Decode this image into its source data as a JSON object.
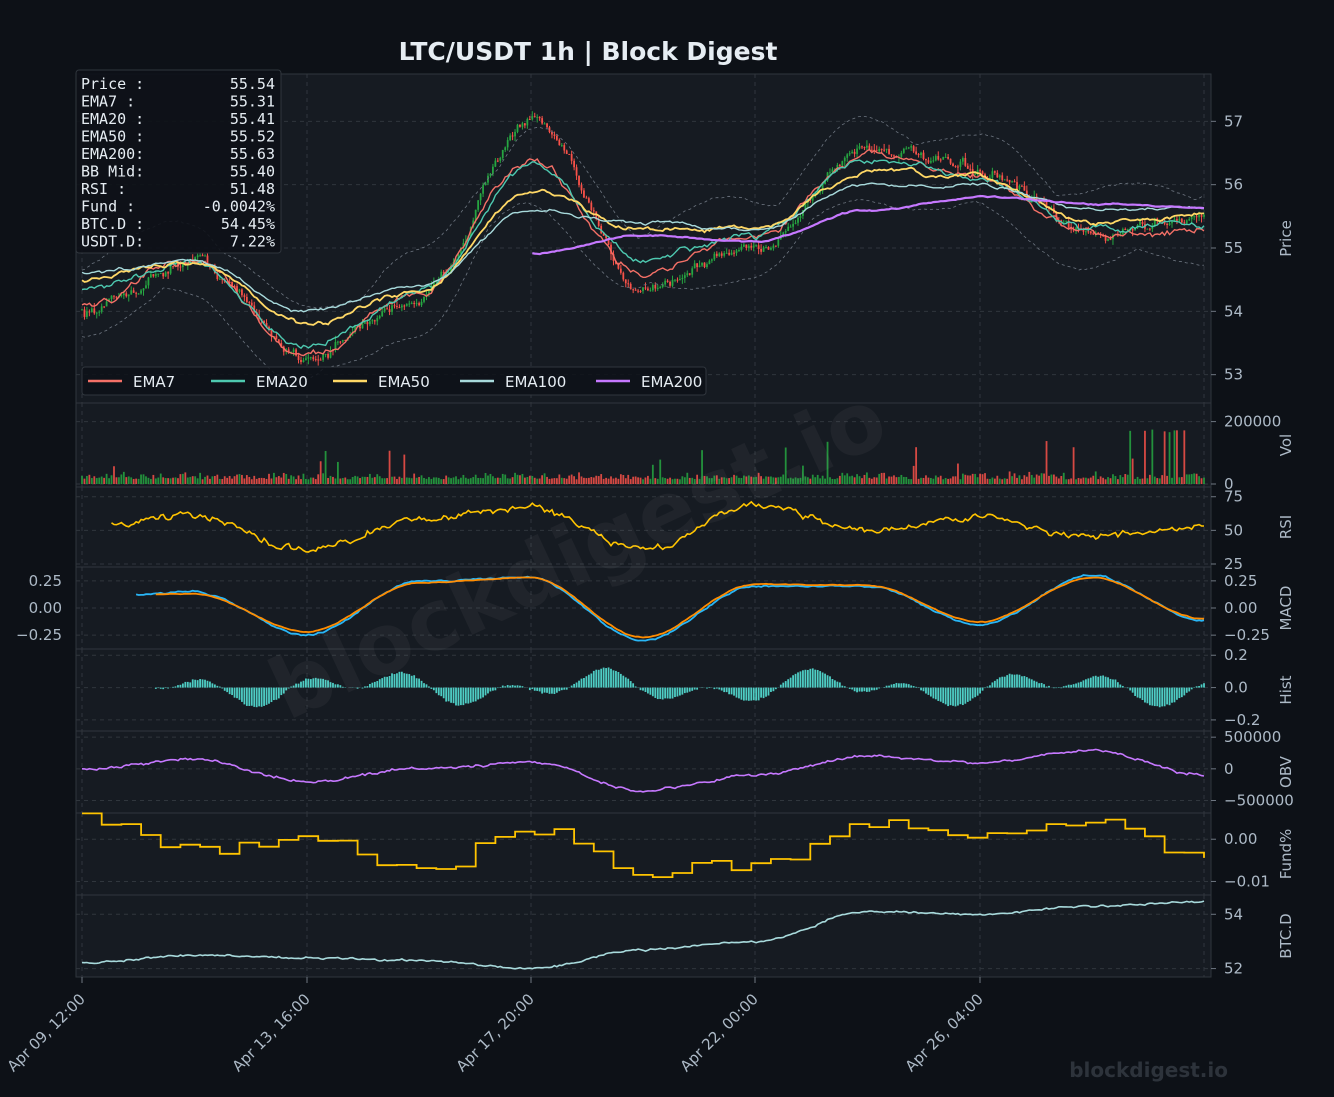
{
  "title": "LTC/USDT  1h  |  Block Digest",
  "watermark": "blockdigest.io",
  "footer_brand": "blockdigest.io",
  "colors": {
    "background": "#0d1117",
    "panel": "#161b22",
    "grid": "#30363d",
    "up": "#26a641",
    "down": "#f85149",
    "ema7": "#f47067",
    "ema20": "#4ec9b0",
    "ema50": "#ffd866",
    "ema100": "#a8dadc",
    "ema200": "#c678ff",
    "rsi": "#ffc400",
    "macd": "#29b6f6",
    "signal": "#ff8c00",
    "hist": "#4ecdc4",
    "obv": "#c678ff",
    "fund": "#ffc400",
    "btcd": "#a8dadc",
    "text": "#adbac7"
  },
  "info_box": [
    {
      "label": "Price :",
      "value": "55.54"
    },
    {
      "label": "EMA7  :",
      "value": "55.31"
    },
    {
      "label": "EMA20 :",
      "value": "55.41"
    },
    {
      "label": "EMA50 :",
      "value": "55.52"
    },
    {
      "label": "EMA200:",
      "value": "55.63"
    },
    {
      "label": "BB Mid:",
      "value": "55.40"
    },
    {
      "label": "RSI   :",
      "value": "51.48"
    },
    {
      "label": "Fund  :",
      "value": "-0.0042%"
    },
    {
      "label": "BTC.D :",
      "value": "54.45%"
    },
    {
      "label": "USDT.D:",
      "value": "7.22%"
    }
  ],
  "legend": [
    "EMA7",
    "EMA20",
    "EMA50",
    "EMA100",
    "EMA200"
  ],
  "x_ticks": [
    "Apr 09, 12:00",
    "Apr 13, 16:00",
    "Apr 17, 20:00",
    "Apr 22, 00:00",
    "Apr 26, 04:00"
  ],
  "panels": [
    {
      "key": "price",
      "label": "Price",
      "ticks": [
        "57",
        "56",
        "55",
        "54",
        "53"
      ]
    },
    {
      "key": "vol",
      "label": "Vol",
      "ticks": [
        "200000",
        "0"
      ]
    },
    {
      "key": "rsi",
      "label": "RSI",
      "ticks": [
        "75",
        "50",
        "25"
      ]
    },
    {
      "key": "macd",
      "label": "MACD",
      "ticks": [
        "0.25",
        "0.00",
        "−0.25"
      ],
      "left_ticks": [
        "0.25",
        "0.00",
        "−0.25"
      ]
    },
    {
      "key": "hist",
      "label": "Hist",
      "ticks": [
        "0.2",
        "0.0",
        "−0.2"
      ]
    },
    {
      "key": "obv",
      "label": "OBV",
      "ticks": [
        "500000",
        "0",
        "−500000"
      ]
    },
    {
      "key": "fund",
      "label": "Fund%",
      "ticks": [
        "0.00",
        "−0.01"
      ]
    },
    {
      "key": "btcd",
      "label": "BTC.D",
      "ticks": [
        "54",
        "52"
      ]
    }
  ],
  "chart_data": {
    "type": "line",
    "title": "LTC/USDT  1h  |  Block Digest",
    "interval": "1h",
    "x_range": [
      "Apr 09, 12:00",
      "Apr 28, 12:00"
    ],
    "x": [
      "Apr 09, 12:00",
      "Apr 11, 14:00",
      "Apr 13, 16:00",
      "Apr 15, 18:00",
      "Apr 17, 20:00",
      "Apr 19, 22:00",
      "Apr 22, 00:00",
      "Apr 24, 02:00",
      "Apr 26, 04:00",
      "Apr 27, 08:00",
      "Apr 28, 12:00"
    ],
    "price": {
      "ylabel": "Price",
      "ylim": [
        52.6,
        57.7
      ],
      "close": [
        54.0,
        54.8,
        53.3,
        54.2,
        57.0,
        54.4,
        55.0,
        56.6,
        56.2,
        55.2,
        55.54
      ]
    },
    "series": [
      {
        "name": "EMA7",
        "values": [
          54.1,
          54.8,
          53.3,
          54.3,
          56.4,
          54.6,
          55.2,
          56.5,
          56.1,
          55.2,
          55.31
        ]
      },
      {
        "name": "EMA20",
        "values": [
          54.3,
          54.8,
          53.4,
          54.3,
          56.3,
          54.8,
          55.2,
          56.4,
          56.1,
          55.3,
          55.41
        ]
      },
      {
        "name": "EMA50",
        "values": [
          54.5,
          54.8,
          53.8,
          54.3,
          55.9,
          55.3,
          55.3,
          56.2,
          56.1,
          55.4,
          55.52
        ]
      },
      {
        "name": "EMA100",
        "values": [
          54.6,
          54.8,
          54.0,
          54.4,
          55.6,
          55.4,
          55.3,
          56.0,
          56.0,
          55.6,
          55.63
        ]
      },
      {
        "name": "EMA200",
        "values": [
          null,
          null,
          null,
          null,
          54.9,
          55.2,
          55.1,
          55.6,
          55.8,
          55.7,
          55.63
        ]
      }
    ],
    "volume": {
      "ylim": [
        0,
        250000
      ]
    },
    "rsi": {
      "ylim": [
        25,
        80
      ],
      "values": [
        55,
        60,
        35,
        58,
        68,
        35,
        70,
        50,
        60,
        45,
        51.48
      ]
    },
    "macd": {
      "ylim": [
        -0.35,
        0.35
      ],
      "macd": [
        0.1,
        0.15,
        -0.25,
        0.25,
        0.28,
        -0.3,
        0.2,
        0.2,
        -0.15,
        0.3,
        -0.12
      ],
      "signal": [
        0.12,
        0.13,
        -0.22,
        0.23,
        0.28,
        -0.27,
        0.22,
        0.21,
        -0.13,
        0.28,
        -0.1
      ]
    },
    "obv": {
      "ylim": [
        -650000,
        550000
      ],
      "values": [
        0,
        150000,
        -200000,
        0,
        100000,
        -350000,
        -100000,
        200000,
        100000,
        300000,
        -100000
      ]
    },
    "fund": {
      "ylim": [
        -0.0125,
        0.0055
      ],
      "values": [
        0.005,
        -0.002,
        0.0,
        -0.007,
        0.003,
        -0.008,
        -0.005,
        0.003,
        0.0,
        0.005,
        -0.0042
      ]
    },
    "btcd": {
      "ylim": [
        51.8,
        54.6
      ],
      "values": [
        52.2,
        52.5,
        52.4,
        52.3,
        52.0,
        52.7,
        53.0,
        54.1,
        54.0,
        54.3,
        54.45
      ]
    }
  }
}
